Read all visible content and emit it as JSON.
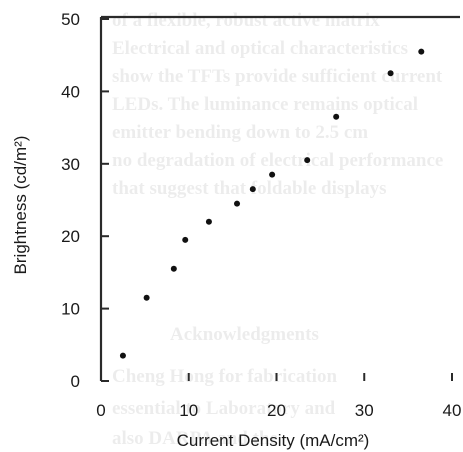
{
  "chart_data": {
    "type": "scatter",
    "title": "",
    "xlabel": "Current Density (mA/cm²)",
    "ylabel": "Brightness (cd/m²)",
    "xlim": [
      0,
      40
    ],
    "ylim": [
      0,
      50
    ],
    "x_ticks": [
      "0",
      "10",
      "20",
      "30",
      "40"
    ],
    "y_ticks": [
      "0",
      "10",
      "20",
      "30",
      "40",
      "50"
    ],
    "grid": false,
    "legend": "none",
    "marker_color": "#111111",
    "series": [
      {
        "x": [
          2.5,
          5.2,
          8.3,
          9.6,
          12.3,
          15.5,
          17.3,
          19.5,
          23.5,
          26.8,
          33.0,
          36.5
        ],
        "y": [
          3.5,
          11.5,
          15.5,
          19.5,
          22.0,
          24.5,
          26.5,
          28.5,
          30.5,
          36.5,
          42.5,
          45.5
        ]
      }
    ]
  }
}
